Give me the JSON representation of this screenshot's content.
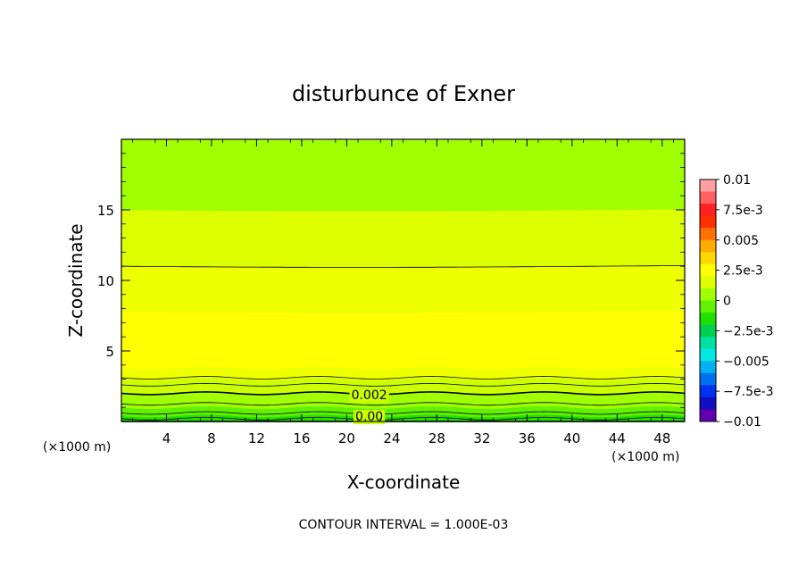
{
  "chart_data": {
    "type": "heatmap",
    "title": "disturbunce of Exner",
    "xlabel": "X-coordinate",
    "ylabel": "Z-coordinate",
    "xlim": [
      0,
      50
    ],
    "ylim": [
      0,
      20
    ],
    "x_ticks": [
      4,
      8,
      12,
      16,
      20,
      24,
      28,
      32,
      36,
      40,
      44,
      48
    ],
    "y_ticks": [
      5,
      10,
      15
    ],
    "x_unit_left": "(×1000 m)",
    "x_unit_right": "(×1000 m)",
    "footer": "CONTOUR INTERVAL = 1.000E-03",
    "colorbar": {
      "range": [
        -0.01,
        0.01
      ],
      "labels": [
        {
          "value": 0.01,
          "text": "0.01"
        },
        {
          "value": 0.0075,
          "text": "7.5e-3"
        },
        {
          "value": 0.005,
          "text": "0.005"
        },
        {
          "value": 0.0025,
          "text": "2.5e-3"
        },
        {
          "value": 0,
          "text": "0"
        },
        {
          "value": -0.0025,
          "text": "−2.5e-3"
        },
        {
          "value": -0.005,
          "text": "−0.005"
        },
        {
          "value": -0.0075,
          "text": "−7.5e-3"
        },
        {
          "value": -0.01,
          "text": "−0.01"
        }
      ],
      "colors": [
        "#ffa0a0",
        "#ff6060",
        "#ff2020",
        "#ff3000",
        "#ff7000",
        "#ffaa00",
        "#ffd800",
        "#ffff00",
        "#ddff00",
        "#a0ff00",
        "#60f000",
        "#20e000",
        "#00d050",
        "#00e0a0",
        "#00e8e0",
        "#00b0f0",
        "#0070f0",
        "#0030f0",
        "#1010c0",
        "#6000b0"
      ]
    },
    "bands": [
      {
        "z": [
          0.0,
          0.4
        ],
        "color": "#20e000"
      },
      {
        "z": [
          0.4,
          1.0
        ],
        "color": "#60f000"
      },
      {
        "z": [
          1.0,
          2.0
        ],
        "color": "#a0ff00"
      },
      {
        "z": [
          2.0,
          3.0
        ],
        "color": "#ccff00"
      },
      {
        "z": [
          3.0,
          3.8
        ],
        "color": "#eeff00"
      },
      {
        "z": [
          3.8,
          7.8
        ],
        "color": "#ffff00"
      },
      {
        "z": [
          7.8,
          11.0
        ],
        "color": "#eeff00"
      },
      {
        "z": [
          11.0,
          15.0
        ],
        "color": "#ddff00"
      },
      {
        "z": [
          15.0,
          20.0
        ],
        "color": "#a0ff00"
      }
    ],
    "contour_lines": [
      {
        "z": 0.2,
        "weight": "thin"
      },
      {
        "z": 0.6,
        "weight": "thin"
      },
      {
        "z": 1.25,
        "weight": "thin"
      },
      {
        "z": 2.0,
        "weight": "thick",
        "label": "0.002"
      },
      {
        "z": 2.6,
        "weight": "thin"
      },
      {
        "z": 3.1,
        "weight": "thin"
      },
      {
        "z": 11.0,
        "weight": "thin"
      },
      {
        "z": 0.0,
        "weight": "thick",
        "label": "0.00"
      }
    ]
  }
}
